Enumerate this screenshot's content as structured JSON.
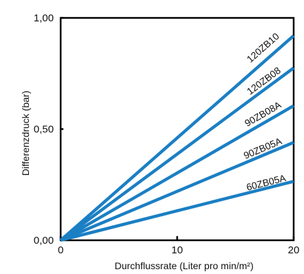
{
  "chart_data": {
    "type": "line",
    "title": "",
    "xlabel": "Durchflussrate (Liter pro min/m²)",
    "ylabel": "Differenzdruck (bar)",
    "xlim": [
      0,
      20
    ],
    "ylim": [
      0,
      1
    ],
    "x_ticks": [
      {
        "value": 0,
        "label": "0"
      },
      {
        "value": 10,
        "label": "10"
      },
      {
        "value": 20,
        "label": "20"
      }
    ],
    "y_ticks": [
      {
        "value": 0,
        "label": "0,00"
      },
      {
        "value": 0.5,
        "label": "0,50"
      },
      {
        "value": 1,
        "label": "1,00"
      }
    ],
    "grid": false,
    "line_color": "#1b7fc4",
    "series": [
      {
        "name": "120ZB10",
        "x": [
          0,
          20
        ],
        "y": [
          0,
          0.92
        ]
      },
      {
        "name": "120ZB08",
        "x": [
          0,
          20
        ],
        "y": [
          0,
          0.775
        ]
      },
      {
        "name": "90ZB08A",
        "x": [
          0,
          20
        ],
        "y": [
          0,
          0.605
        ]
      },
      {
        "name": "90ZB05A",
        "x": [
          0,
          20
        ],
        "y": [
          0,
          0.44
        ]
      },
      {
        "name": "60ZB05A",
        "x": [
          0,
          20
        ],
        "y": [
          0,
          0.265
        ]
      }
    ],
    "series_label_positions": [
      {
        "name": "120ZB10",
        "x": 17.55,
        "y": 0.855
      },
      {
        "name": "120ZB08",
        "x": 17.6,
        "y": 0.705
      },
      {
        "name": "90ZB08A",
        "x": 17.5,
        "y": 0.555
      },
      {
        "name": "90ZB05A",
        "x": 17.45,
        "y": 0.4
      },
      {
        "name": "60ZB05A",
        "x": 17.7,
        "y": 0.245
      }
    ]
  }
}
